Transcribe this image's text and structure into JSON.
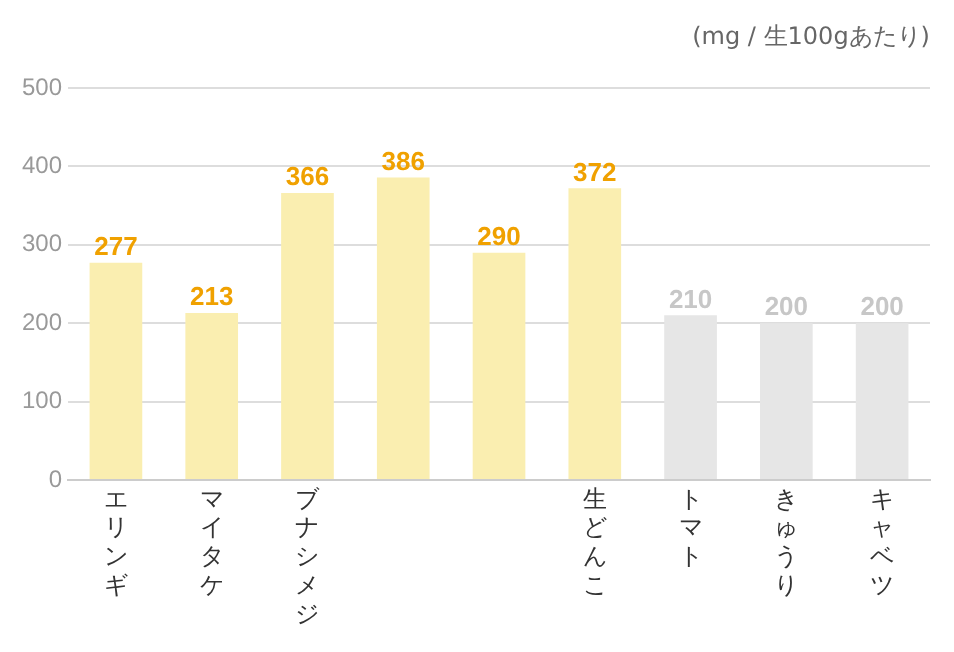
{
  "chart_data": {
    "type": "bar",
    "subtitle": "(mg / 生100gあたり)",
    "categories": [
      "エリンギ",
      "マイタケ",
      "ブナシメジ",
      null,
      null,
      "生どんこ",
      "トマト",
      "きゅうり",
      "キャベツ"
    ],
    "values": [
      277,
      213,
      366,
      386,
      290,
      372,
      210,
      200,
      200
    ],
    "colors": [
      "#faeeb0",
      "#faeeb0",
      "#faeeb0",
      "#faeeb0",
      "#faeeb0",
      "#faeeb0",
      "#e6e6e6",
      "#e6e6e6",
      "#e6e6e6"
    ],
    "ylim": [
      0,
      500
    ],
    "yticks": [
      0,
      100,
      200,
      300,
      400,
      500
    ],
    "grid": "y",
    "data_labels": true,
    "legend": false
  }
}
